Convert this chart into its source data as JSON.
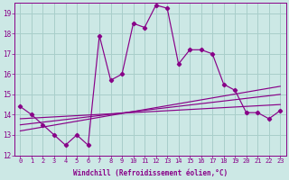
{
  "xlabel": "Windchill (Refroidissement éolien,°C)",
  "xlim_min": -0.5,
  "xlim_max": 23.5,
  "ylim_min": 12,
  "ylim_max": 19.5,
  "yticks": [
    12,
    13,
    14,
    15,
    16,
    17,
    18,
    19
  ],
  "xticks": [
    0,
    1,
    2,
    3,
    4,
    5,
    6,
    7,
    8,
    9,
    10,
    11,
    12,
    13,
    14,
    15,
    16,
    17,
    18,
    19,
    20,
    21,
    22,
    23
  ],
  "background_color": "#cce8e5",
  "grid_color": "#a8ceca",
  "line_color": "#880088",
  "jagged_x": [
    0,
    1,
    2,
    3,
    4,
    5,
    6,
    7,
    8,
    9,
    10,
    11,
    12,
    13,
    14,
    15,
    16,
    17,
    18,
    19,
    20,
    21,
    22,
    23
  ],
  "jagged_y": [
    14.4,
    14.0,
    13.5,
    13.0,
    12.5,
    13.0,
    12.5,
    17.9,
    15.7,
    16.0,
    18.5,
    18.3,
    19.4,
    19.25,
    16.5,
    17.2,
    17.2,
    17.0,
    15.5,
    15.2,
    14.1,
    14.1,
    13.8,
    14.2
  ],
  "trend1_x": [
    0,
    23
  ],
  "trend1_y": [
    13.2,
    15.4
  ],
  "trend2_x": [
    0,
    23
  ],
  "trend2_y": [
    13.5,
    15.0
  ],
  "trend3_x": [
    0,
    23
  ],
  "trend3_y": [
    13.8,
    14.5
  ]
}
